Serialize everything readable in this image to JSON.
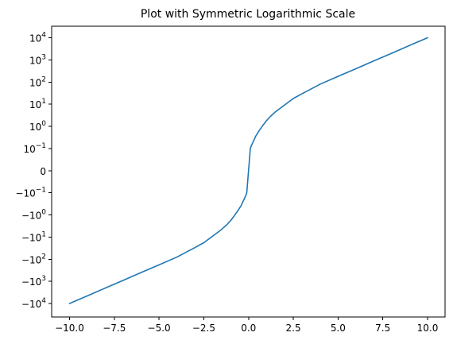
{
  "chart_data": {
    "type": "line",
    "title": "Plot with Symmetric Logarithmic Scale",
    "xlabel": "",
    "ylabel": "",
    "y_scale": "symlog",
    "y_linthresh": 0.1,
    "xlim": [
      -10.0,
      10.0
    ],
    "ylim": [
      -15000,
      15000
    ],
    "x_ticks": [
      -10.0,
      -7.5,
      -5.0,
      -2.5,
      0.0,
      2.5,
      5.0,
      7.5,
      10.0
    ],
    "x_tick_labels": [
      "−10.0",
      "−7.5",
      "−5.0",
      "−2.5",
      "0.0",
      "2.5",
      "5.0",
      "7.5",
      "10.0"
    ],
    "y_ticks": [
      {
        "value": 10000,
        "base": "10",
        "exp": "4",
        "sign": ""
      },
      {
        "value": 1000,
        "base": "10",
        "exp": "3",
        "sign": ""
      },
      {
        "value": 100,
        "base": "10",
        "exp": "2",
        "sign": ""
      },
      {
        "value": 10,
        "base": "10",
        "exp": "1",
        "sign": ""
      },
      {
        "value": 1,
        "base": "10",
        "exp": "0",
        "sign": ""
      },
      {
        "value": 0.1,
        "base": "10",
        "exp": "−1",
        "sign": ""
      },
      {
        "value": 0,
        "base": "0",
        "exp": "",
        "sign": ""
      },
      {
        "value": -0.1,
        "base": "10",
        "exp": "−1",
        "sign": "−"
      },
      {
        "value": -1,
        "base": "10",
        "exp": "0",
        "sign": "−"
      },
      {
        "value": -10,
        "base": "10",
        "exp": "1",
        "sign": "−"
      },
      {
        "value": -100,
        "base": "10",
        "exp": "2",
        "sign": "−"
      },
      {
        "value": -1000,
        "base": "10",
        "exp": "3",
        "sign": "−"
      },
      {
        "value": -10000,
        "base": "10",
        "exp": "4",
        "sign": "−"
      }
    ],
    "grid": false,
    "series": [
      {
        "color": "#1f77b4",
        "x": [
          -10,
          -9,
          -8,
          -7,
          -6,
          -5,
          -4,
          -3,
          -2.5,
          -2,
          -1.5,
          -1.2,
          -1,
          -0.8,
          -0.6,
          -0.4,
          -0.3,
          -0.2,
          -0.15,
          -0.1,
          -0.05,
          0,
          0.05,
          0.1,
          0.15,
          0.2,
          0.3,
          0.4,
          0.6,
          0.8,
          1,
          1.2,
          1.5,
          2,
          2.5,
          3,
          4,
          5,
          6,
          7,
          8,
          9,
          10
        ],
        "y": [
          -10000,
          -4500,
          -2000,
          -900,
          -400,
          -180,
          -80,
          -30,
          -18,
          -9,
          -4.5,
          -2.7,
          -1.8,
          -1.1,
          -0.65,
          -0.36,
          -0.24,
          -0.16,
          -0.13,
          -0.1,
          -0.05,
          0,
          0.05,
          0.1,
          0.13,
          0.16,
          0.24,
          0.36,
          0.65,
          1.1,
          1.8,
          2.7,
          4.5,
          9,
          18,
          30,
          80,
          180,
          400,
          900,
          2000,
          4500,
          10000
        ]
      }
    ]
  }
}
